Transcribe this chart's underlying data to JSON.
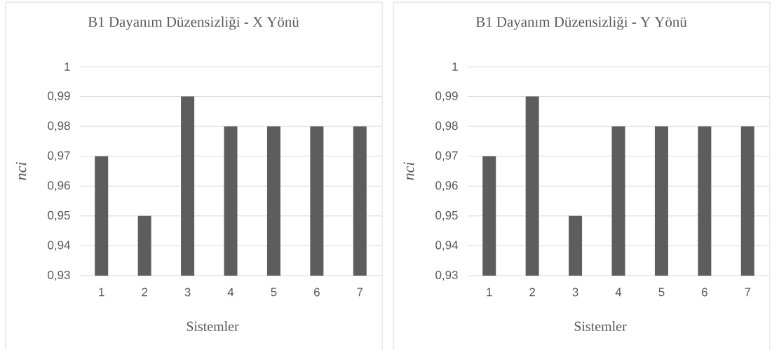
{
  "chart_data": [
    {
      "type": "bar",
      "title": "B1 Dayanım Düzensizliği - X Yönü",
      "xlabel": "Sistemler",
      "ylabel": "nci",
      "categories": [
        "1",
        "2",
        "3",
        "4",
        "5",
        "6",
        "7"
      ],
      "values": [
        0.97,
        0.95,
        0.99,
        0.98,
        0.98,
        0.98,
        0.98
      ],
      "color": "#5d5d5d",
      "ylim": [
        0.93,
        1
      ],
      "yticks": [
        {
          "value": 0.93,
          "label": "0,93"
        },
        {
          "value": 0.94,
          "label": "0,94"
        },
        {
          "value": 0.95,
          "label": "0,95"
        },
        {
          "value": 0.96,
          "label": "0,96"
        },
        {
          "value": 0.97,
          "label": "0,97"
        },
        {
          "value": 0.98,
          "label": "0,98"
        },
        {
          "value": 0.99,
          "label": "0,99"
        },
        1
      ],
      "grid": "y"
    },
    {
      "type": "bar",
      "title": "B1 Dayanım Düzensizliği - Y Yönü",
      "xlabel": "Sistemler",
      "ylabel": "nci",
      "categories": [
        "1",
        "2",
        "3",
        "4",
        "5",
        "6",
        "7"
      ],
      "values": [
        0.97,
        0.99,
        0.95,
        0.98,
        0.98,
        0.98,
        0.98
      ],
      "color": "#5d5d5d",
      "ylim": [
        0.93,
        1
      ],
      "yticks": [
        {
          "value": 0.93,
          "label": "0,93"
        },
        {
          "value": 0.94,
          "label": "0,94"
        },
        {
          "value": 0.95,
          "label": "0,95"
        },
        {
          "value": 0.96,
          "label": "0,96"
        },
        {
          "value": 0.97,
          "label": "0,97"
        },
        {
          "value": 0.98,
          "label": "0,98"
        },
        {
          "value": 0.99,
          "label": "0,99"
        },
        1
      ],
      "grid": "y"
    }
  ]
}
